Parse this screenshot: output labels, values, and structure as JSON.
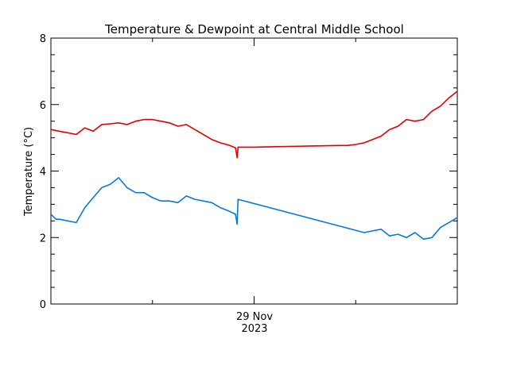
{
  "chart_data": {
    "type": "line",
    "title": "Temperature & Dewpoint at Central Middle School",
    "xlabel": "",
    "ylabel": "Temperature (°C)",
    "ylim": [
      0,
      8
    ],
    "y_ticks": [
      "0",
      "2",
      "4",
      "6",
      "8"
    ],
    "x_tick_label_line1": "29 Nov",
    "x_tick_label_line2": "2023",
    "x_range_hours": [
      0,
      24
    ],
    "grid": false,
    "legend": "none",
    "series": [
      {
        "color": "#e00000",
        "x": [
          0.0,
          0.5,
          1.0,
          1.5,
          2.0,
          2.5,
          3.0,
          3.5,
          4.0,
          4.5,
          5.0,
          5.5,
          6.0,
          6.5,
          7.0,
          7.5,
          8.0,
          8.5,
          9.0,
          9.5,
          10.0,
          10.5,
          10.9,
          11.0,
          11.05,
          11.1,
          12.0,
          13.0,
          14.0,
          15.0,
          16.0,
          17.0,
          17.5,
          18.0,
          18.5,
          19.0,
          19.5,
          20.0,
          20.5,
          21.0,
          21.5,
          22.0,
          22.5,
          23.0,
          23.5,
          24.0
        ],
        "y": [
          5.25,
          5.2,
          5.15,
          5.1,
          5.3,
          5.2,
          5.4,
          5.42,
          5.45,
          5.4,
          5.5,
          5.55,
          5.55,
          5.5,
          5.45,
          5.35,
          5.4,
          5.25,
          5.1,
          4.95,
          4.85,
          4.78,
          4.7,
          4.4,
          4.72,
          4.72,
          4.72,
          4.73,
          4.74,
          4.75,
          4.76,
          4.77,
          4.77,
          4.8,
          4.85,
          4.95,
          5.05,
          5.25,
          5.35,
          5.55,
          5.5,
          5.55,
          5.8,
          5.95,
          6.2,
          6.4
        ]
      },
      {
        "color": "#0a78d8",
        "x": [
          0.0,
          0.3,
          0.5,
          1.0,
          1.5,
          2.0,
          2.5,
          3.0,
          3.5,
          4.0,
          4.5,
          5.0,
          5.5,
          6.0,
          6.5,
          7.0,
          7.5,
          8.0,
          8.5,
          9.0,
          9.5,
          10.0,
          10.5,
          10.9,
          11.0,
          11.05,
          18.5,
          19.0,
          19.5,
          20.0,
          20.5,
          21.0,
          21.5,
          22.0,
          22.5,
          23.0,
          23.5,
          24.0
        ],
        "y": [
          2.7,
          2.55,
          2.55,
          2.5,
          2.45,
          2.9,
          3.2,
          3.5,
          3.6,
          3.8,
          3.5,
          3.35,
          3.35,
          3.2,
          3.1,
          3.1,
          3.05,
          3.25,
          3.15,
          3.1,
          3.05,
          2.9,
          2.8,
          2.7,
          2.4,
          3.15,
          2.15,
          2.2,
          2.25,
          2.05,
          2.1,
          2.0,
          2.15,
          1.95,
          2.0,
          2.3,
          2.45,
          2.6
        ]
      }
    ]
  }
}
